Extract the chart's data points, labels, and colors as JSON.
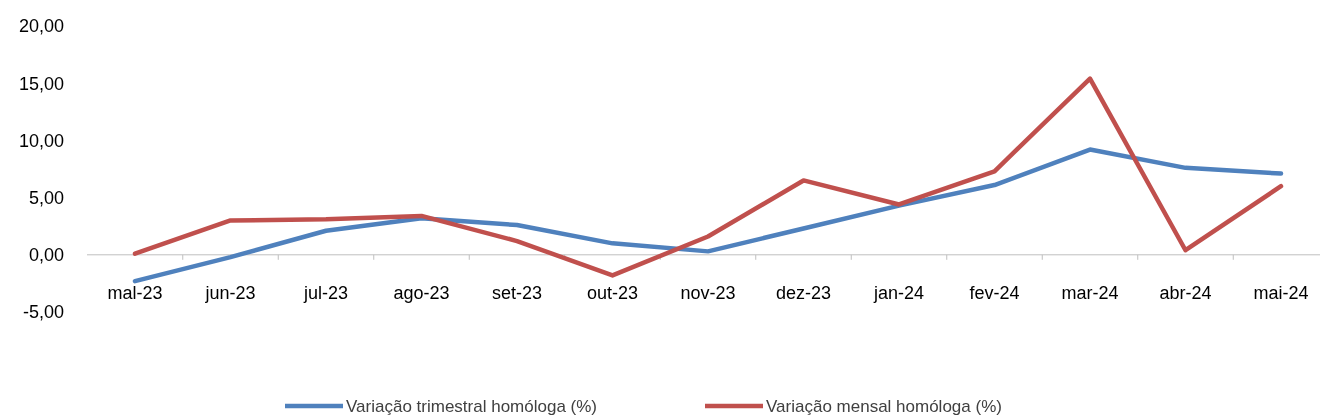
{
  "chart_data": {
    "type": "line",
    "categories": [
      "mal-23",
      "jun-23",
      "jul-23",
      "ago-23",
      "set-23",
      "out-23",
      "nov-23",
      "dez-23",
      "jan-24",
      "fev-24",
      "mar-24",
      "abr-24",
      "mai-24"
    ],
    "series": [
      {
        "name": "Variação trimestral homóloga (%)",
        "color": "#4f81bd",
        "values": [
          -2.3,
          -0.2,
          2.1,
          3.2,
          2.6,
          1.0,
          0.3,
          2.3,
          4.3,
          6.1,
          9.2,
          7.6,
          7.1
        ]
      },
      {
        "name": "Variação mensal homóloga (%)",
        "color": "#c0504d",
        "values": [
          0.1,
          3.0,
          3.1,
          3.4,
          1.2,
          -1.8,
          1.6,
          6.5,
          4.4,
          7.3,
          15.4,
          0.4,
          6.0
        ]
      }
    ],
    "ylim": [
      -5,
      20
    ],
    "yticks": [
      {
        "value": -5,
        "label": "-5,00"
      },
      {
        "value": 0,
        "label": "0,00"
      },
      {
        "value": 5,
        "label": "5,00"
      },
      {
        "value": 10,
        "label": "10,00"
      },
      {
        "value": 15,
        "label": "15,00"
      },
      {
        "value": 20,
        "label": "20,00"
      }
    ],
    "grid": false,
    "legend": "bottom",
    "marker": "none",
    "line_style": "solid"
  }
}
